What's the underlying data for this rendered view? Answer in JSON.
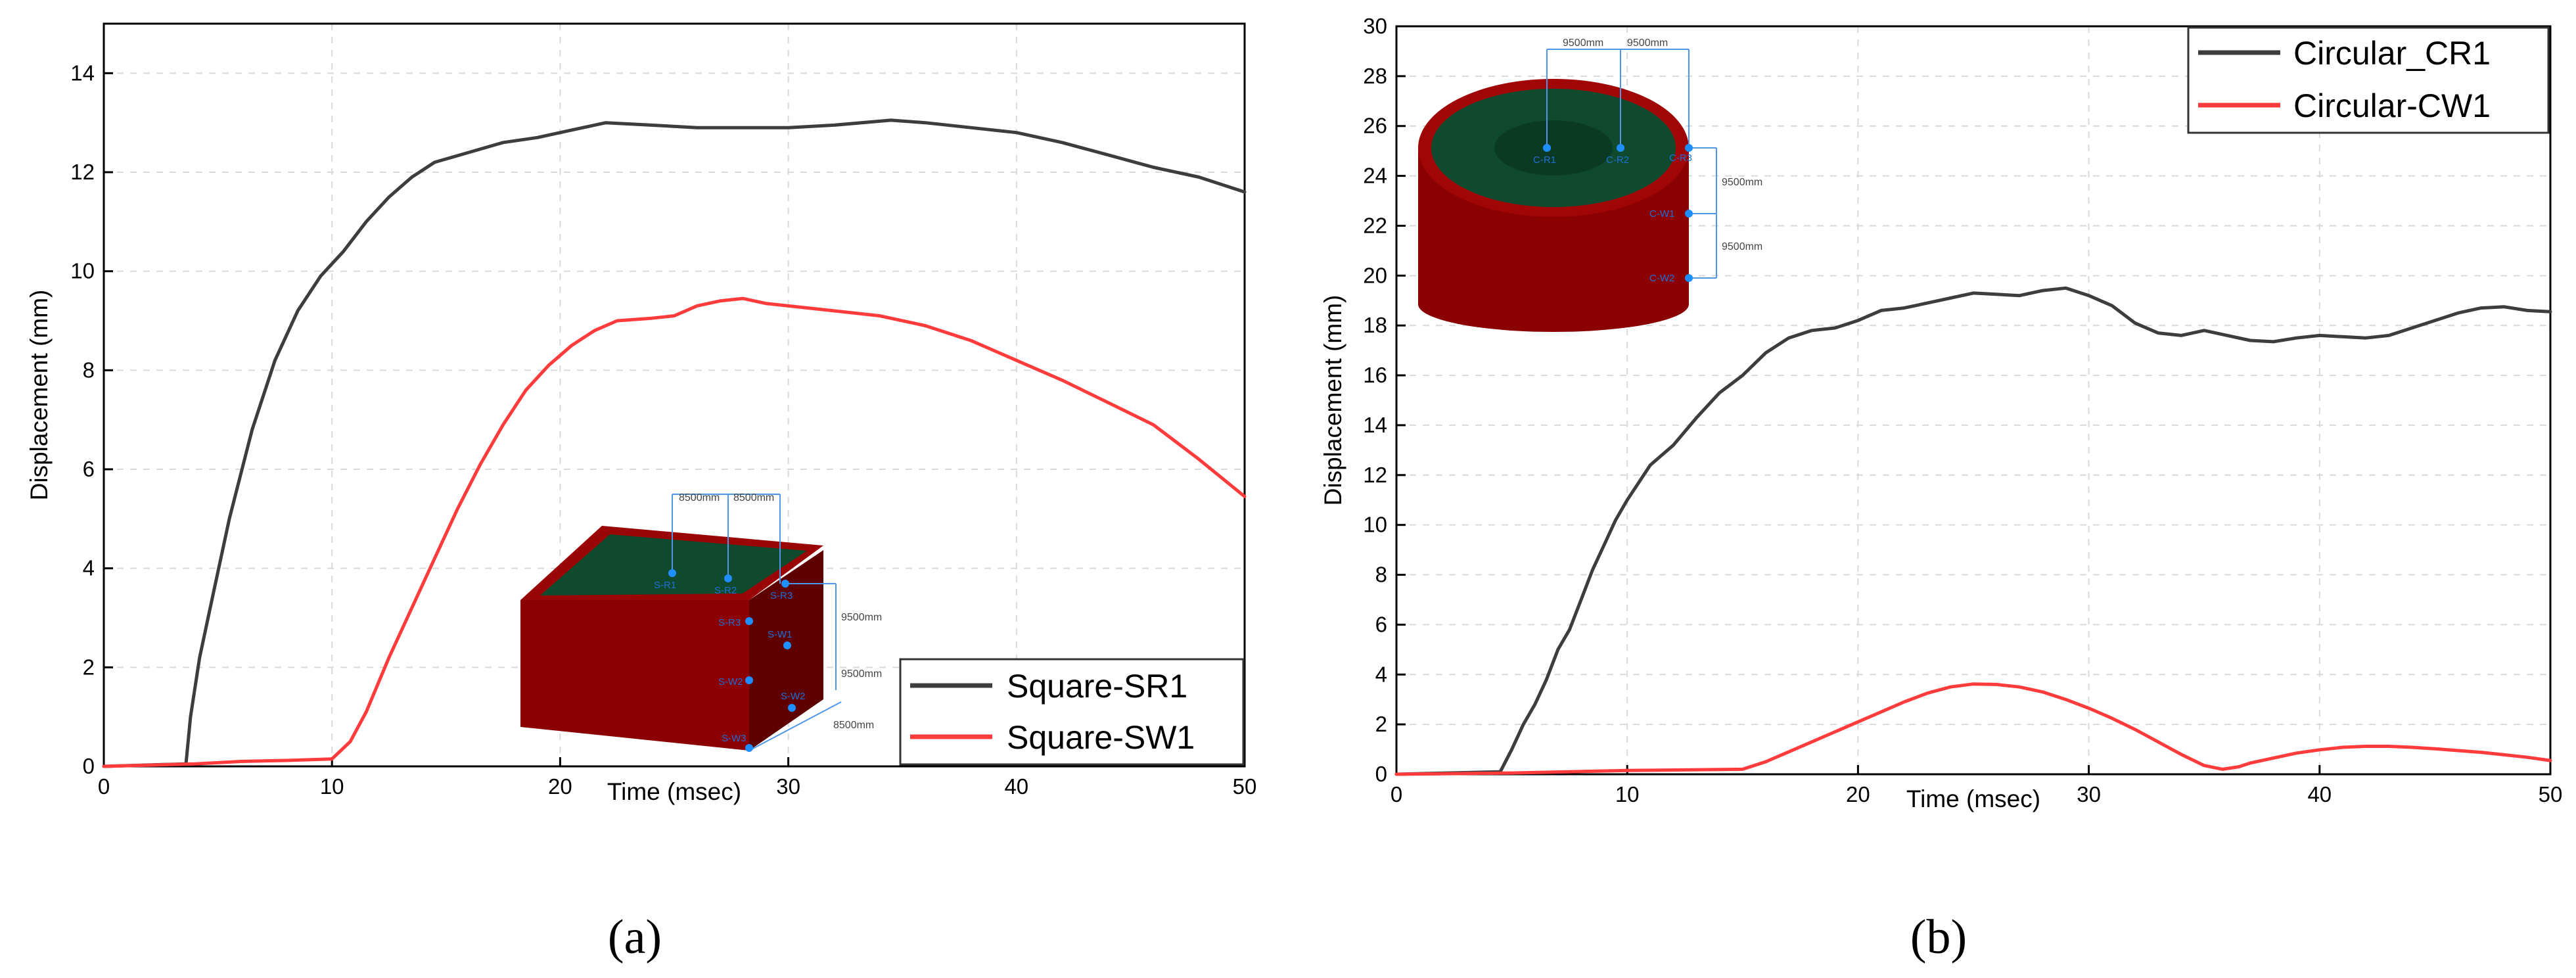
{
  "colors": {
    "series_black": "#3d3d3d",
    "series_red": "#ff3b3b",
    "model_wall": "#8b0000",
    "model_top": "#0f4a2f"
  },
  "panels": [
    {
      "panel_label": "(a)"
    },
    {
      "panel_label": "(b)"
    }
  ],
  "insets": [
    {
      "points": [
        "S-R1",
        "S-R2",
        "S-R3",
        "S-R3",
        "S-W1",
        "S-W2",
        "S-W2",
        "S-W3"
      ],
      "dims": [
        "8500mm",
        "8500mm",
        "9500mm",
        "9500mm",
        "8500mm"
      ]
    },
    {
      "points": [
        "C-R1",
        "C-R2",
        "C-R3",
        "C-W1",
        "C-W2"
      ],
      "dims": [
        "9500mm",
        "9500mm",
        "9500mm",
        "9500mm"
      ]
    }
  ],
  "chart_data": [
    {
      "type": "line",
      "xlabel": "Time (msec)",
      "ylabel": "Displacement (mm)",
      "xlim": [
        0,
        50
      ],
      "ylim": [
        0,
        15
      ],
      "xticks": [
        0,
        10,
        20,
        30,
        40,
        50
      ],
      "yticks": [
        0,
        2,
        4,
        6,
        8,
        10,
        12,
        14
      ],
      "grid": true,
      "legend_position": "bottom-right",
      "series": [
        {
          "name": "Square-SR1",
          "color": "#3d3d3d",
          "x": [
            0,
            3.6,
            3.8,
            4.2,
            4.8,
            5.5,
            6.5,
            7.5,
            8.5,
            9.5,
            10.5,
            11.5,
            12.5,
            13.5,
            14.5,
            16,
            17.5,
            19,
            20,
            21,
            22,
            24,
            26,
            28,
            30,
            32,
            34.5,
            36,
            38,
            40,
            42,
            44,
            46,
            48,
            50
          ],
          "y": [
            0,
            0.05,
            1.0,
            2.2,
            3.5,
            5.0,
            6.8,
            8.2,
            9.2,
            9.9,
            10.4,
            11.0,
            11.5,
            11.9,
            12.2,
            12.4,
            12.6,
            12.7,
            12.8,
            12.9,
            13.0,
            12.95,
            12.9,
            12.9,
            12.9,
            12.95,
            13.05,
            13.0,
            12.9,
            12.8,
            12.6,
            12.35,
            12.1,
            11.9,
            11.6
          ]
        },
        {
          "name": "Square-SW1",
          "color": "#ff3b3b",
          "x": [
            0,
            4,
            6,
            8,
            10,
            10.8,
            11.5,
            12.5,
            13.5,
            14.5,
            15.5,
            16.5,
            17.5,
            18.5,
            19.5,
            20.5,
            21.5,
            22.5,
            24,
            25,
            26,
            27,
            28,
            29,
            30,
            32,
            34,
            36,
            38,
            40,
            42,
            44,
            46,
            48,
            50
          ],
          "y": [
            0,
            0.05,
            0.1,
            0.12,
            0.15,
            0.5,
            1.1,
            2.2,
            3.2,
            4.2,
            5.2,
            6.1,
            6.9,
            7.6,
            8.1,
            8.5,
            8.8,
            9.0,
            9.05,
            9.1,
            9.3,
            9.4,
            9.45,
            9.35,
            9.3,
            9.2,
            9.1,
            8.9,
            8.6,
            8.2,
            7.8,
            7.35,
            6.9,
            6.2,
            5.45
          ]
        }
      ]
    },
    {
      "type": "line",
      "xlabel": "Time (msec)",
      "ylabel": "Displacement (mm)",
      "xlim": [
        0,
        50
      ],
      "ylim": [
        0,
        30
      ],
      "xticks": [
        0,
        10,
        20,
        30,
        40,
        50
      ],
      "yticks": [
        0,
        2,
        4,
        6,
        8,
        10,
        12,
        14,
        16,
        18,
        20,
        22,
        24,
        26,
        28,
        30
      ],
      "grid": true,
      "legend_position": "top-right",
      "series": [
        {
          "name": "Circular_CR1",
          "color": "#3d3d3d",
          "x": [
            0,
            4.5,
            5,
            5.5,
            6,
            6.5,
            7,
            7.5,
            8,
            8.5,
            9,
            9.5,
            10,
            11,
            12,
            13,
            14,
            15,
            16,
            17,
            18,
            19,
            20,
            21,
            22,
            23,
            24,
            25,
            26,
            27,
            28,
            29,
            30,
            31,
            32,
            33,
            34,
            35,
            36,
            37,
            38,
            39,
            40,
            41,
            42,
            43,
            44,
            45,
            46,
            47,
            48,
            49,
            50
          ],
          "y": [
            0,
            0.1,
            1.0,
            2.0,
            2.8,
            3.8,
            5.0,
            5.8,
            7.0,
            8.2,
            9.2,
            10.2,
            11.0,
            12.4,
            13.2,
            14.3,
            15.3,
            16.0,
            16.9,
            17.5,
            17.8,
            17.9,
            18.2,
            18.6,
            18.7,
            18.9,
            19.1,
            19.3,
            19.25,
            19.2,
            19.4,
            19.5,
            19.2,
            18.8,
            18.1,
            17.7,
            17.6,
            17.8,
            17.6,
            17.4,
            17.35,
            17.5,
            17.6,
            17.55,
            17.5,
            17.6,
            17.9,
            18.2,
            18.5,
            18.7,
            18.75,
            18.6,
            18.55
          ]
        },
        {
          "name": "Circular-CW1",
          "color": "#ff3b3b",
          "x": [
            0,
            5,
            10,
            15,
            16,
            17,
            18,
            19,
            20,
            21,
            22,
            23,
            24,
            25,
            26,
            27,
            28,
            29,
            30,
            31,
            32,
            33,
            34,
            35,
            35.8,
            36.5,
            37,
            38,
            39,
            40,
            41,
            42,
            43,
            44,
            45,
            46,
            47,
            48,
            49,
            50
          ],
          "y": [
            0,
            0.05,
            0.15,
            0.2,
            0.5,
            0.9,
            1.3,
            1.7,
            2.1,
            2.5,
            2.9,
            3.25,
            3.5,
            3.62,
            3.6,
            3.5,
            3.3,
            3.0,
            2.65,
            2.25,
            1.8,
            1.3,
            0.8,
            0.35,
            0.2,
            0.3,
            0.45,
            0.65,
            0.85,
            0.98,
            1.08,
            1.12,
            1.12,
            1.08,
            1.02,
            0.95,
            0.88,
            0.78,
            0.68,
            0.55
          ]
        }
      ]
    }
  ]
}
